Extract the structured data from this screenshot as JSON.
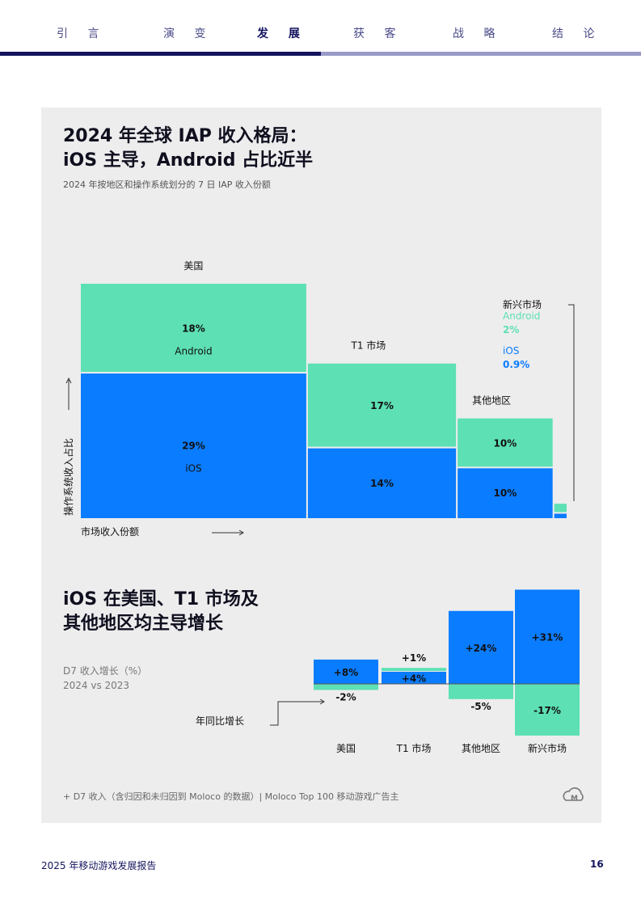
{
  "nav": {
    "items": [
      "引 言",
      "演 变",
      "发 展",
      "获 客",
      "战 略",
      "结 论"
    ],
    "active": "发 展"
  },
  "colors": {
    "ios": "#0a7cff",
    "android": "#5de0b4",
    "navy": "#14145e"
  },
  "chart1": {
    "title_line1": "2024 年全球 IAP 收入格局：",
    "title_line2": "iOS 主导，Android 占比近半",
    "subtitle": "2024 年按地区和操作系统划分的 7 日 IAP 收入份额",
    "y_axis_label": "操作系统收入占比",
    "x_axis_label": "市场收入份额"
  },
  "chart2": {
    "title_line1": "iOS 在美国、T1 市场及",
    "title_line2": "其他地区均主导增长",
    "metric_label": "D7 收入增长（%）",
    "comparison_label": "2024 vs 2023",
    "yoy_label": "年同比增长"
  },
  "chart_data": [
    {
      "type": "mosaic",
      "series": [
        {
          "name": "Android"
        },
        {
          "name": "iOS"
        }
      ],
      "categories": [
        "美国",
        "T1 市场",
        "其他地区",
        "新兴市场"
      ],
      "values": [
        {
          "region": "美国",
          "android": "18%",
          "ios": "29%",
          "android_value": 18,
          "ios_value": 29
        },
        {
          "region": "T1 市场",
          "android": "17%",
          "ios": "14%",
          "android_value": 17,
          "ios_value": 14
        },
        {
          "region": "其他地区",
          "android": "10%",
          "ios": "10%",
          "android_value": 10,
          "ios_value": 10
        },
        {
          "region": "新兴市场",
          "android": "2%",
          "ios": "0.9%",
          "android_value": 2,
          "ios_value": 0.9
        }
      ]
    },
    {
      "type": "bar",
      "categories": [
        "美国",
        "T1 市场",
        "其他地区",
        "新兴市场"
      ],
      "series": [
        {
          "name": "iOS",
          "values": [
            8,
            4,
            24,
            31
          ],
          "labels": [
            "+8%",
            "+4%",
            "+24%",
            "+31%"
          ]
        },
        {
          "name": "Android",
          "values": [
            -2,
            1,
            -5,
            -17
          ],
          "labels": [
            "-2%",
            "+1%",
            "-5%",
            "-17%"
          ]
        }
      ]
    }
  ],
  "footnote": "+ D7 收入（含归因和未归因到 Moloco 的数据）| Moloco Top 100 移动游戏广告主",
  "footer": {
    "report_title": "2025 年移动游戏发展报告",
    "page_number": "16"
  }
}
